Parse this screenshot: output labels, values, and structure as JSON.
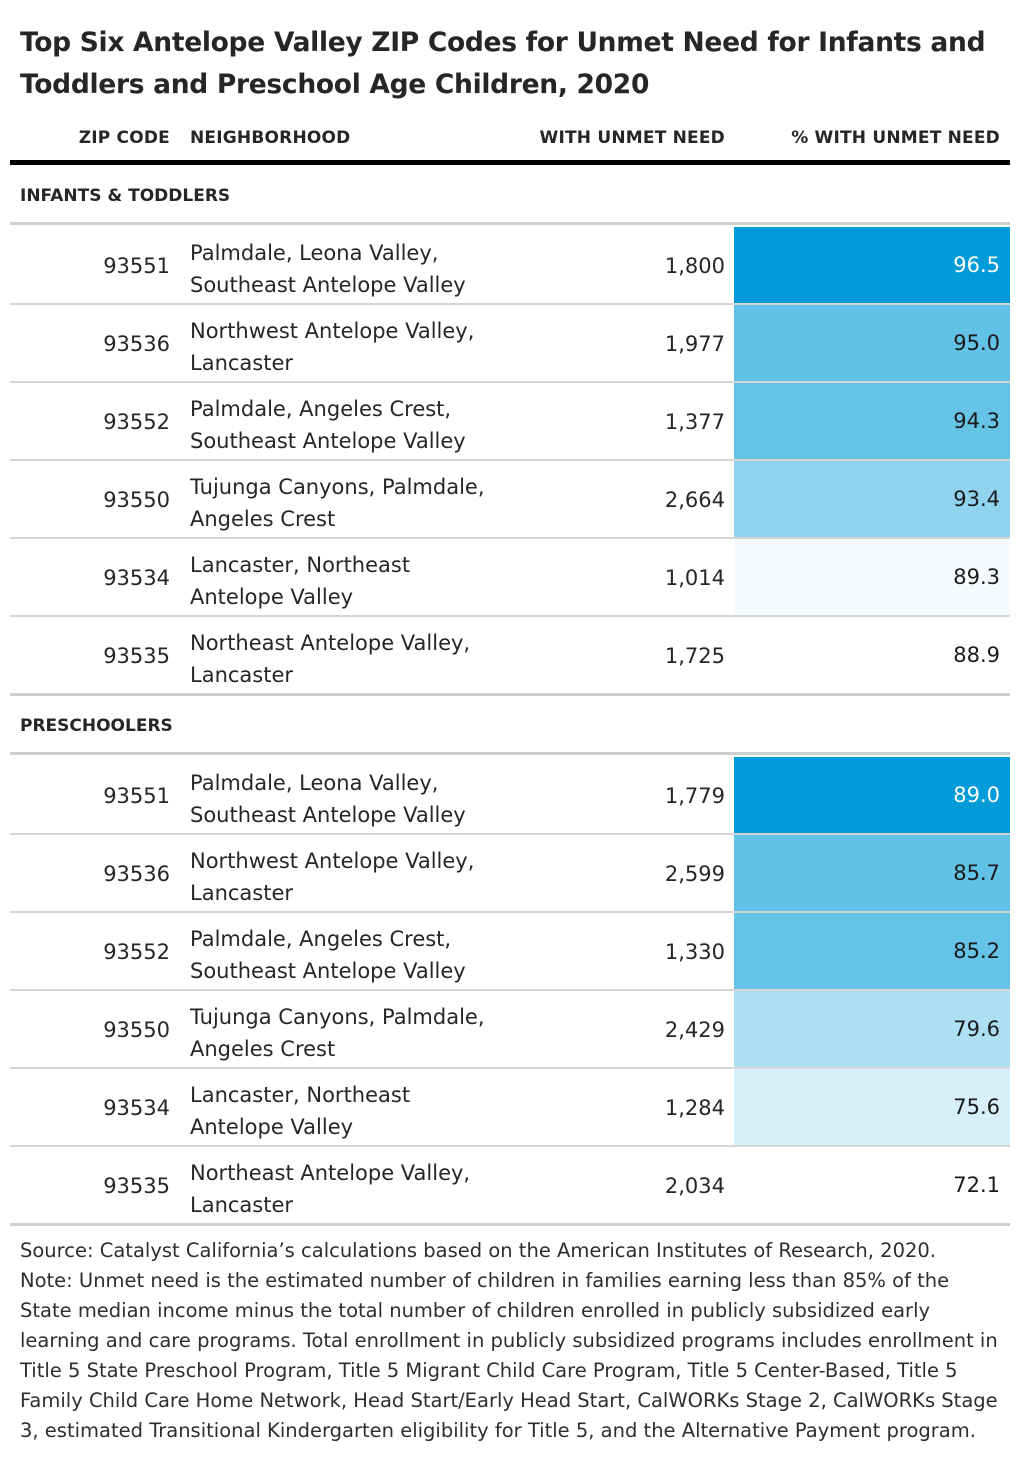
{
  "title": "Top Six Antelope Valley ZIP Codes for Unmet Need for Infants and Toddlers and Preschool Age Children, 2020",
  "columns": {
    "zip": "ZIP CODE",
    "neighborhood": "NEIGHBORHOOD",
    "with_unmet": "WITH UNMET NEED",
    "pct_unmet": "% WITH UNMET NEED"
  },
  "colors": {
    "scale_low": "#ffffff",
    "scale_high": "#009bd8",
    "text_dark": "#1a1a1a",
    "text_light": "#ffffff"
  },
  "chart_data": {
    "type": "table",
    "title": "Top Six Antelope Valley ZIP Codes for Unmet Need for Infants and Toddlers and Preschool Age Children, 2020",
    "color_scale": "% WITH UNMET NEED (shaded, darker = higher)",
    "sections": [
      {
        "label": "INFANTS & TODDLERS",
        "rows": [
          {
            "zip": "93551",
            "neighborhood": "Palmdale, Leona Valley, Southeast Antelope Valley",
            "with_unmet": "1,800",
            "pct_unmet": "96.5",
            "shade": 1.0
          },
          {
            "zip": "93536",
            "neighborhood": "Northwest Antelope Valley, Lancaster",
            "with_unmet": "1,977",
            "pct_unmet": "95.0",
            "shade": 0.62
          },
          {
            "zip": "93552",
            "neighborhood": "Palmdale, Angeles Crest, Southeast Antelope Valley",
            "with_unmet": "1,377",
            "pct_unmet": "94.3",
            "shade": 0.6
          },
          {
            "zip": "93550",
            "neighborhood": "Tujunga Canyons, Palmdale, Angeles Crest",
            "with_unmet": "2,664",
            "pct_unmet": "93.4",
            "shade": 0.44
          },
          {
            "zip": "93534",
            "neighborhood": "Lancaster, Northeast Antelope Valley",
            "with_unmet": "1,014",
            "pct_unmet": "89.3",
            "shade": 0.04
          },
          {
            "zip": "93535",
            "neighborhood": "Northeast Antelope Valley, Lancaster",
            "with_unmet": "1,725",
            "pct_unmet": "88.9",
            "shade": 0.0
          }
        ]
      },
      {
        "label": "PRESCHOOLERS",
        "rows": [
          {
            "zip": "93551",
            "neighborhood": "Palmdale, Leona Valley, Southeast Antelope Valley",
            "with_unmet": "1,779",
            "pct_unmet": "89.0",
            "shade": 1.0
          },
          {
            "zip": "93536",
            "neighborhood": "Northwest Antelope Valley, Lancaster",
            "with_unmet": "2,599",
            "pct_unmet": "85.7",
            "shade": 0.62
          },
          {
            "zip": "93552",
            "neighborhood": "Palmdale, Angeles Crest, Southeast Antelope Valley",
            "with_unmet": "1,330",
            "pct_unmet": "85.2",
            "shade": 0.6
          },
          {
            "zip": "93550",
            "neighborhood": "Tujunga Canyons, Palmdale, Angeles Crest",
            "with_unmet": "2,429",
            "pct_unmet": "79.6",
            "shade": 0.32
          },
          {
            "zip": "93534",
            "neighborhood": "Lancaster, Northeast Antelope Valley",
            "with_unmet": "1,284",
            "pct_unmet": "75.6",
            "shade": 0.16
          },
          {
            "zip": "93535",
            "neighborhood": "Northeast Antelope Valley, Lancaster",
            "with_unmet": "2,034",
            "pct_unmet": "72.1",
            "shade": 0.0
          }
        ]
      }
    ]
  },
  "footer": {
    "source": "Source: Catalyst California’s calculations based on the American Institutes of Research, 2020.",
    "note": "Note: Unmet need is the estimated number of children in families earning less than 85% of the State median income minus the total number of children enrolled in publicly subsidized early learning and care programs. Total enrollment in publicly subsidized programs includes enrollment in Title 5 State Preschool Program, Title 5 Migrant Child Care Program, Title 5 Center-Based, Title 5 Family Child Care Home Network, Head Start/Early Head Start, CalWORKs Stage 2, CalWORKs Stage 3, estimated Transitional Kindergarten eligibility for Title 5, and the Alternative Payment program."
  }
}
